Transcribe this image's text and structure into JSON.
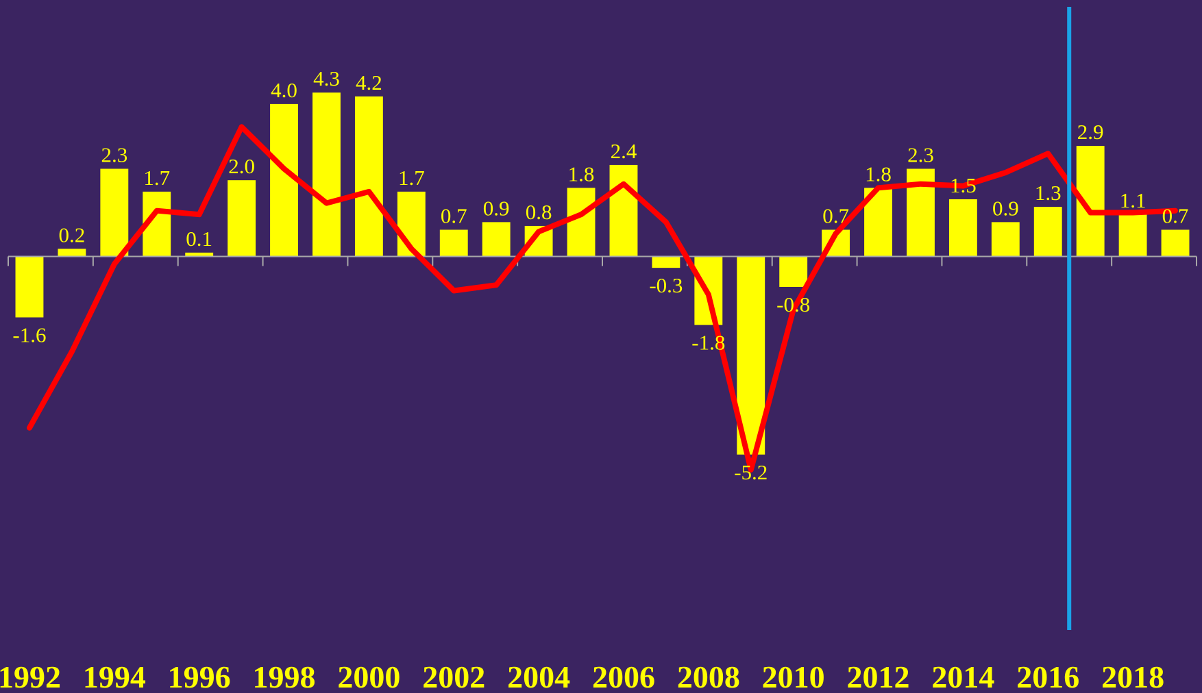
{
  "chart_data": {
    "type": "bar",
    "categories": [
      "1992",
      "1993",
      "1994",
      "1995",
      "1996",
      "1997",
      "1998",
      "1999",
      "2000",
      "2001",
      "2002",
      "2003",
      "2004",
      "2005",
      "2006",
      "2007",
      "2008",
      "2009",
      "2010",
      "2011",
      "2012",
      "2013",
      "2014",
      "2015",
      "2016",
      "2017",
      "2018",
      "2019"
    ],
    "tick_labels": [
      "1992",
      "1994",
      "1996",
      "1998",
      "2000",
      "2002",
      "2004",
      "2006",
      "2008",
      "2010",
      "2012",
      "2014",
      "2016",
      "2018"
    ],
    "series": [
      {
        "type": "bar",
        "values": [
          -1.6,
          0.2,
          2.3,
          1.7,
          0.1,
          2.0,
          4.0,
          4.3,
          4.2,
          1.7,
          0.7,
          0.9,
          0.8,
          1.8,
          2.4,
          -0.3,
          -1.8,
          -5.2,
          -0.8,
          0.7,
          1.8,
          2.3,
          1.5,
          0.9,
          1.3,
          2.9,
          1.1,
          0.7
        ],
        "labels": [
          "-1.6",
          "0.2",
          "2.3",
          "1.7",
          "0.1",
          "2.0",
          "4.0",
          "4.3",
          "4.2",
          "1.7",
          "0.7",
          "0.9",
          "0.8",
          "1.8",
          "2.4",
          "-0.3",
          "-1.8",
          "-5.2",
          "-0.8",
          "0.7",
          "1.8",
          "2.3",
          "1.5",
          "0.9",
          "1.3",
          "2.9",
          "1.1",
          "0.7"
        ]
      },
      {
        "type": "line",
        "values": [
          -4.5,
          -2.5,
          -0.2,
          1.2,
          1.1,
          3.4,
          2.3,
          1.4,
          1.7,
          0.2,
          -0.9,
          -0.75,
          0.65,
          1.1,
          1.9,
          0.9,
          -1.0,
          -5.6,
          -1.4,
          0.6,
          1.8,
          1.9,
          1.85,
          2.2,
          2.7,
          1.15,
          1.15,
          1.2
        ]
      }
    ],
    "ylim": [
      -7.9,
      5.4
    ],
    "gridlines": false,
    "legend": "none",
    "vertical_marker": {
      "between": [
        "2016",
        "2017"
      ]
    },
    "colors": {
      "background": "#3b2461",
      "bar": "#ffff00",
      "line": "#ff0000",
      "marker": "#1aa3e8",
      "axis": "#a8a8a8",
      "text": "#ffff00"
    }
  }
}
